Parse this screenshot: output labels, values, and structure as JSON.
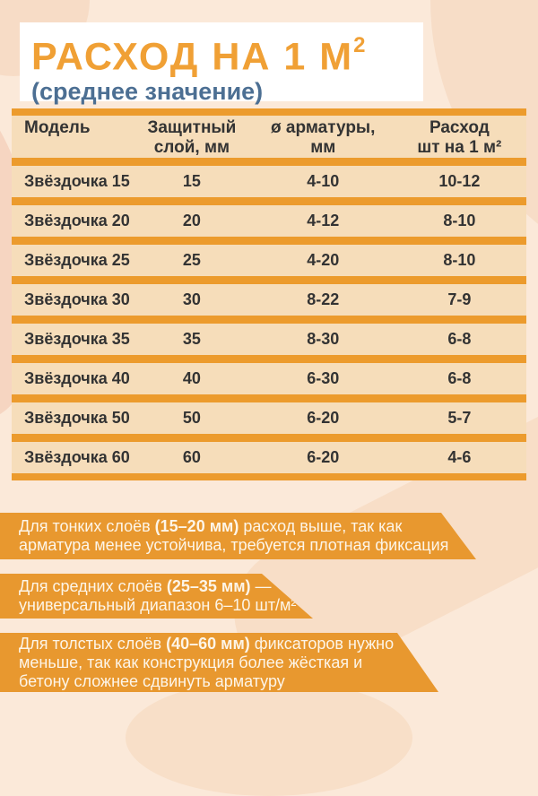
{
  "header": {
    "title": "РАСХОД НА 1 М",
    "title_sup": "2",
    "subtitle": "(среднее значение)"
  },
  "table_headers": [
    {
      "line1": "Модель",
      "line2": ""
    },
    {
      "line1": "Защитный",
      "line2": "слой, мм"
    },
    {
      "line1": "ø арматуры,",
      "line2": "мм"
    },
    {
      "line1": "Расход",
      "line2": "шт на 1 м²"
    }
  ],
  "chart_data": {
    "type": "table",
    "title": "РАСХОД НА 1 М² (среднее значение)",
    "columns": [
      "Модель",
      "Защитный слой, мм",
      "ø арматуры, мм",
      "Расход шт на 1 м²"
    ],
    "rows": [
      [
        "Звёздочка 15",
        "15",
        "4-10",
        "10-12"
      ],
      [
        "Звёздочка 20",
        "20",
        "4-12",
        "8-10"
      ],
      [
        "Звёздочка 25",
        "25",
        "4-20",
        "8-10"
      ],
      [
        "Звёздочка 30",
        "30",
        "8-22",
        "7-9"
      ],
      [
        "Звёздочка 35",
        "35",
        "8-30",
        "6-8"
      ],
      [
        "Звёздочка 40",
        "40",
        "6-30",
        "6-8"
      ],
      [
        "Звёздочка 50",
        "50",
        "6-20",
        "5-7"
      ],
      [
        "Звёздочка 60",
        "60",
        "6-20",
        "4-6"
      ]
    ],
    "annotations": [
      "Для тонких слоёв (15–20 мм) расход выше, так как арматура менее устойчива, требуется плотная фиксация",
      "Для средних слоёв (25–35 мм) — универсальный диапазон 6–10 шт/м²",
      "Для толстых слоёв (40–60 мм) фиксаторов нужно меньше, так как конструкция более жёсткая и бетону сложнее сдвинуть арматуру"
    ]
  },
  "notes": [
    {
      "lines": [
        [
          "Для тонких слоёв ",
          "(15–20 мм)",
          " расход выше, так как"
        ],
        [
          "арматура менее устойчива, требуется плотная фиксация"
        ]
      ]
    },
    {
      "lines": [
        [
          "Для средних слоёв ",
          "(25–35 мм)",
          " —"
        ],
        [
          "универсальный диапазон 6–10 шт/м²"
        ]
      ]
    },
    {
      "lines": [
        [
          "Для толстых слоёв ",
          "(40–60 мм)",
          " фиксаторов нужно"
        ],
        [
          "меньше, так как конструкция более жёсткая и"
        ],
        [
          "бетону сложнее сдвинуть арматуру"
        ]
      ]
    }
  ],
  "colors": {
    "background": "#FBE9D9",
    "blob_peach": "#F7DDC7",
    "blob_pink": "#F6D5C1",
    "table_orange": "#EC9B2D",
    "banner_orange": "#E8982F",
    "row_cream": "#F6DDBA",
    "title_orange": "#F0A035",
    "subtitle_navy": "#4C6F93",
    "table_text": "#333333",
    "banner_text": "#FDF5E8"
  }
}
